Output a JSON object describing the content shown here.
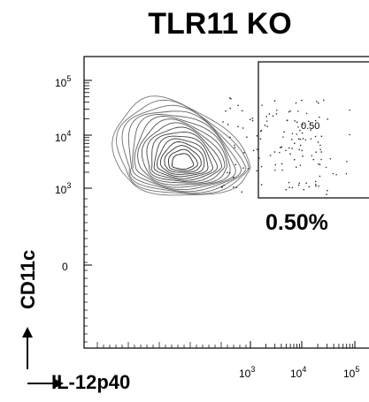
{
  "chart_data": {
    "type": "scatter",
    "subtype": "flow-cytometry contour plot",
    "title": "TLR11 KO",
    "xlabel": "IL-12p40",
    "ylabel": "CD11c",
    "x_scale": "biexponential",
    "y_scale": "biexponential",
    "x_ticks": [
      {
        "base": "10",
        "exp": "3"
      },
      {
        "base": "10",
        "exp": "4"
      },
      {
        "base": "10",
        "exp": "5"
      }
    ],
    "y_ticks": [
      {
        "label": "0",
        "base": "",
        "exp": ""
      },
      {
        "base": "10",
        "exp": "3"
      },
      {
        "base": "10",
        "exp": "4"
      },
      {
        "base": "10",
        "exp": "5"
      }
    ],
    "gate": {
      "x_range": [
        300,
        100000
      ],
      "y_range": [
        400,
        60000
      ],
      "inner_label": "0.50",
      "outer_label": "0.50%"
    },
    "population_center": {
      "x": 50,
      "y": 500
    }
  }
}
